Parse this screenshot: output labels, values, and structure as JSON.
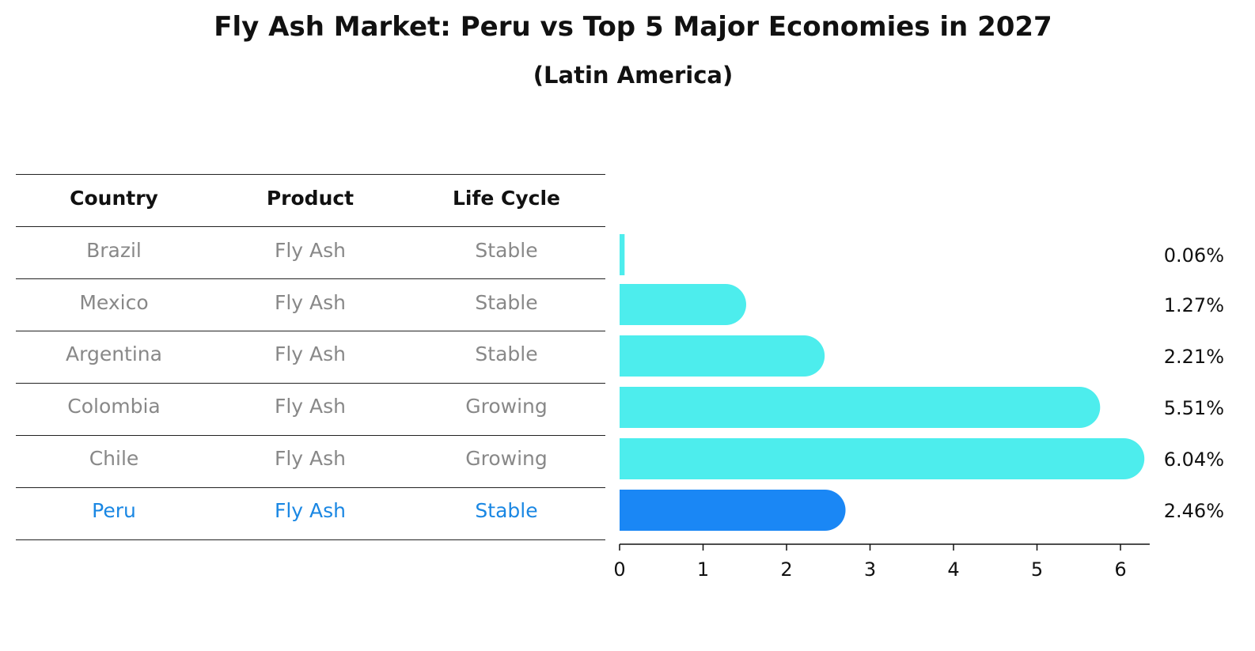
{
  "header": {
    "title": "Fly Ash Market: Peru vs Top 5 Major Economies in 2027",
    "subtitle": "(Latin America)"
  },
  "table": {
    "columns": [
      "Country",
      "Product",
      "Life Cycle"
    ],
    "rows": [
      {
        "country": "Brazil",
        "product": "Fly Ash",
        "life_cycle": "Stable"
      },
      {
        "country": "Mexico",
        "product": "Fly Ash",
        "life_cycle": "Stable"
      },
      {
        "country": "Argentina",
        "product": "Fly Ash",
        "life_cycle": "Stable"
      },
      {
        "country": "Colombia",
        "product": "Fly Ash",
        "life_cycle": "Growing"
      },
      {
        "country": "Chile",
        "product": "Fly Ash",
        "life_cycle": "Growing"
      },
      {
        "country": "Peru",
        "product": "Fly Ash",
        "life_cycle": "Stable"
      }
    ],
    "highlight_row": 5
  },
  "colors": {
    "bar": "#4deded",
    "highlight": "#1a87f5",
    "text_highlight": "#1a87e3"
  },
  "chart_data": {
    "type": "bar",
    "orientation": "horizontal",
    "categories": [
      "Brazil",
      "Mexico",
      "Argentina",
      "Colombia",
      "Chile",
      "Peru"
    ],
    "values": [
      0.06,
      1.27,
      2.21,
      5.51,
      6.04,
      2.46
    ],
    "value_labels": [
      "0.06%",
      "1.27%",
      "2.21%",
      "5.51%",
      "6.04%",
      "2.46%"
    ],
    "highlight": "Peru",
    "xlim": [
      0,
      6.35
    ],
    "xticks": [
      0,
      1,
      2,
      3,
      4,
      5,
      6
    ],
    "xlabel": "",
    "ylabel": "",
    "grid": false
  }
}
